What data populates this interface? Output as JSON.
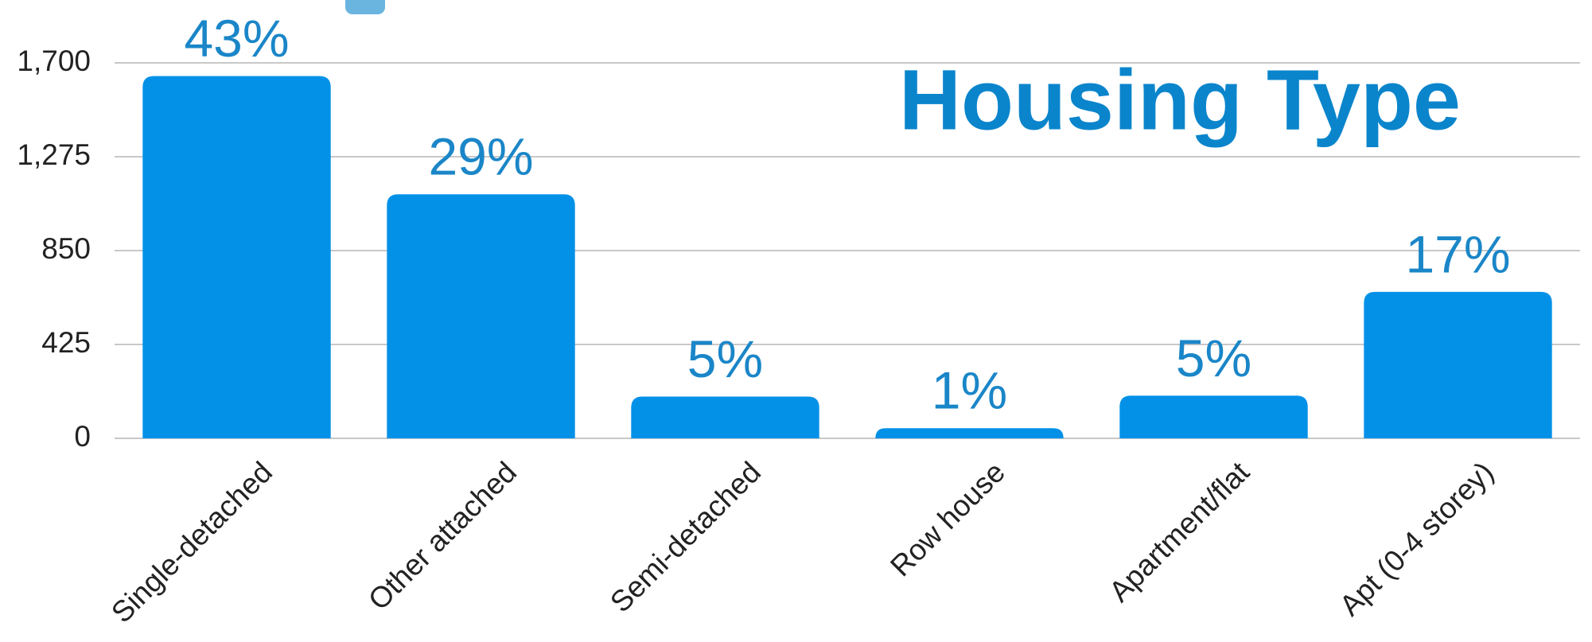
{
  "chart_data": {
    "type": "bar",
    "title": "Housing Type",
    "categories": [
      "Single-detached",
      "Other attached",
      "Semi-detached",
      "Row house",
      "Apartment/flat",
      "Apt (0-4 storey)"
    ],
    "values": [
      1640,
      1105,
      189,
      46,
      193,
      663
    ],
    "value_labels": [
      "43%",
      "29%",
      "5%",
      "1%",
      "5%",
      "17%"
    ],
    "color": "#0391e8",
    "ylim": [
      0,
      1700
    ],
    "yticks": [
      0,
      425,
      850,
      {
        "value": 1275,
        "label": "1,275"
      },
      {
        "value": 1700,
        "label": "1,700"
      }
    ],
    "grid": true
  }
}
